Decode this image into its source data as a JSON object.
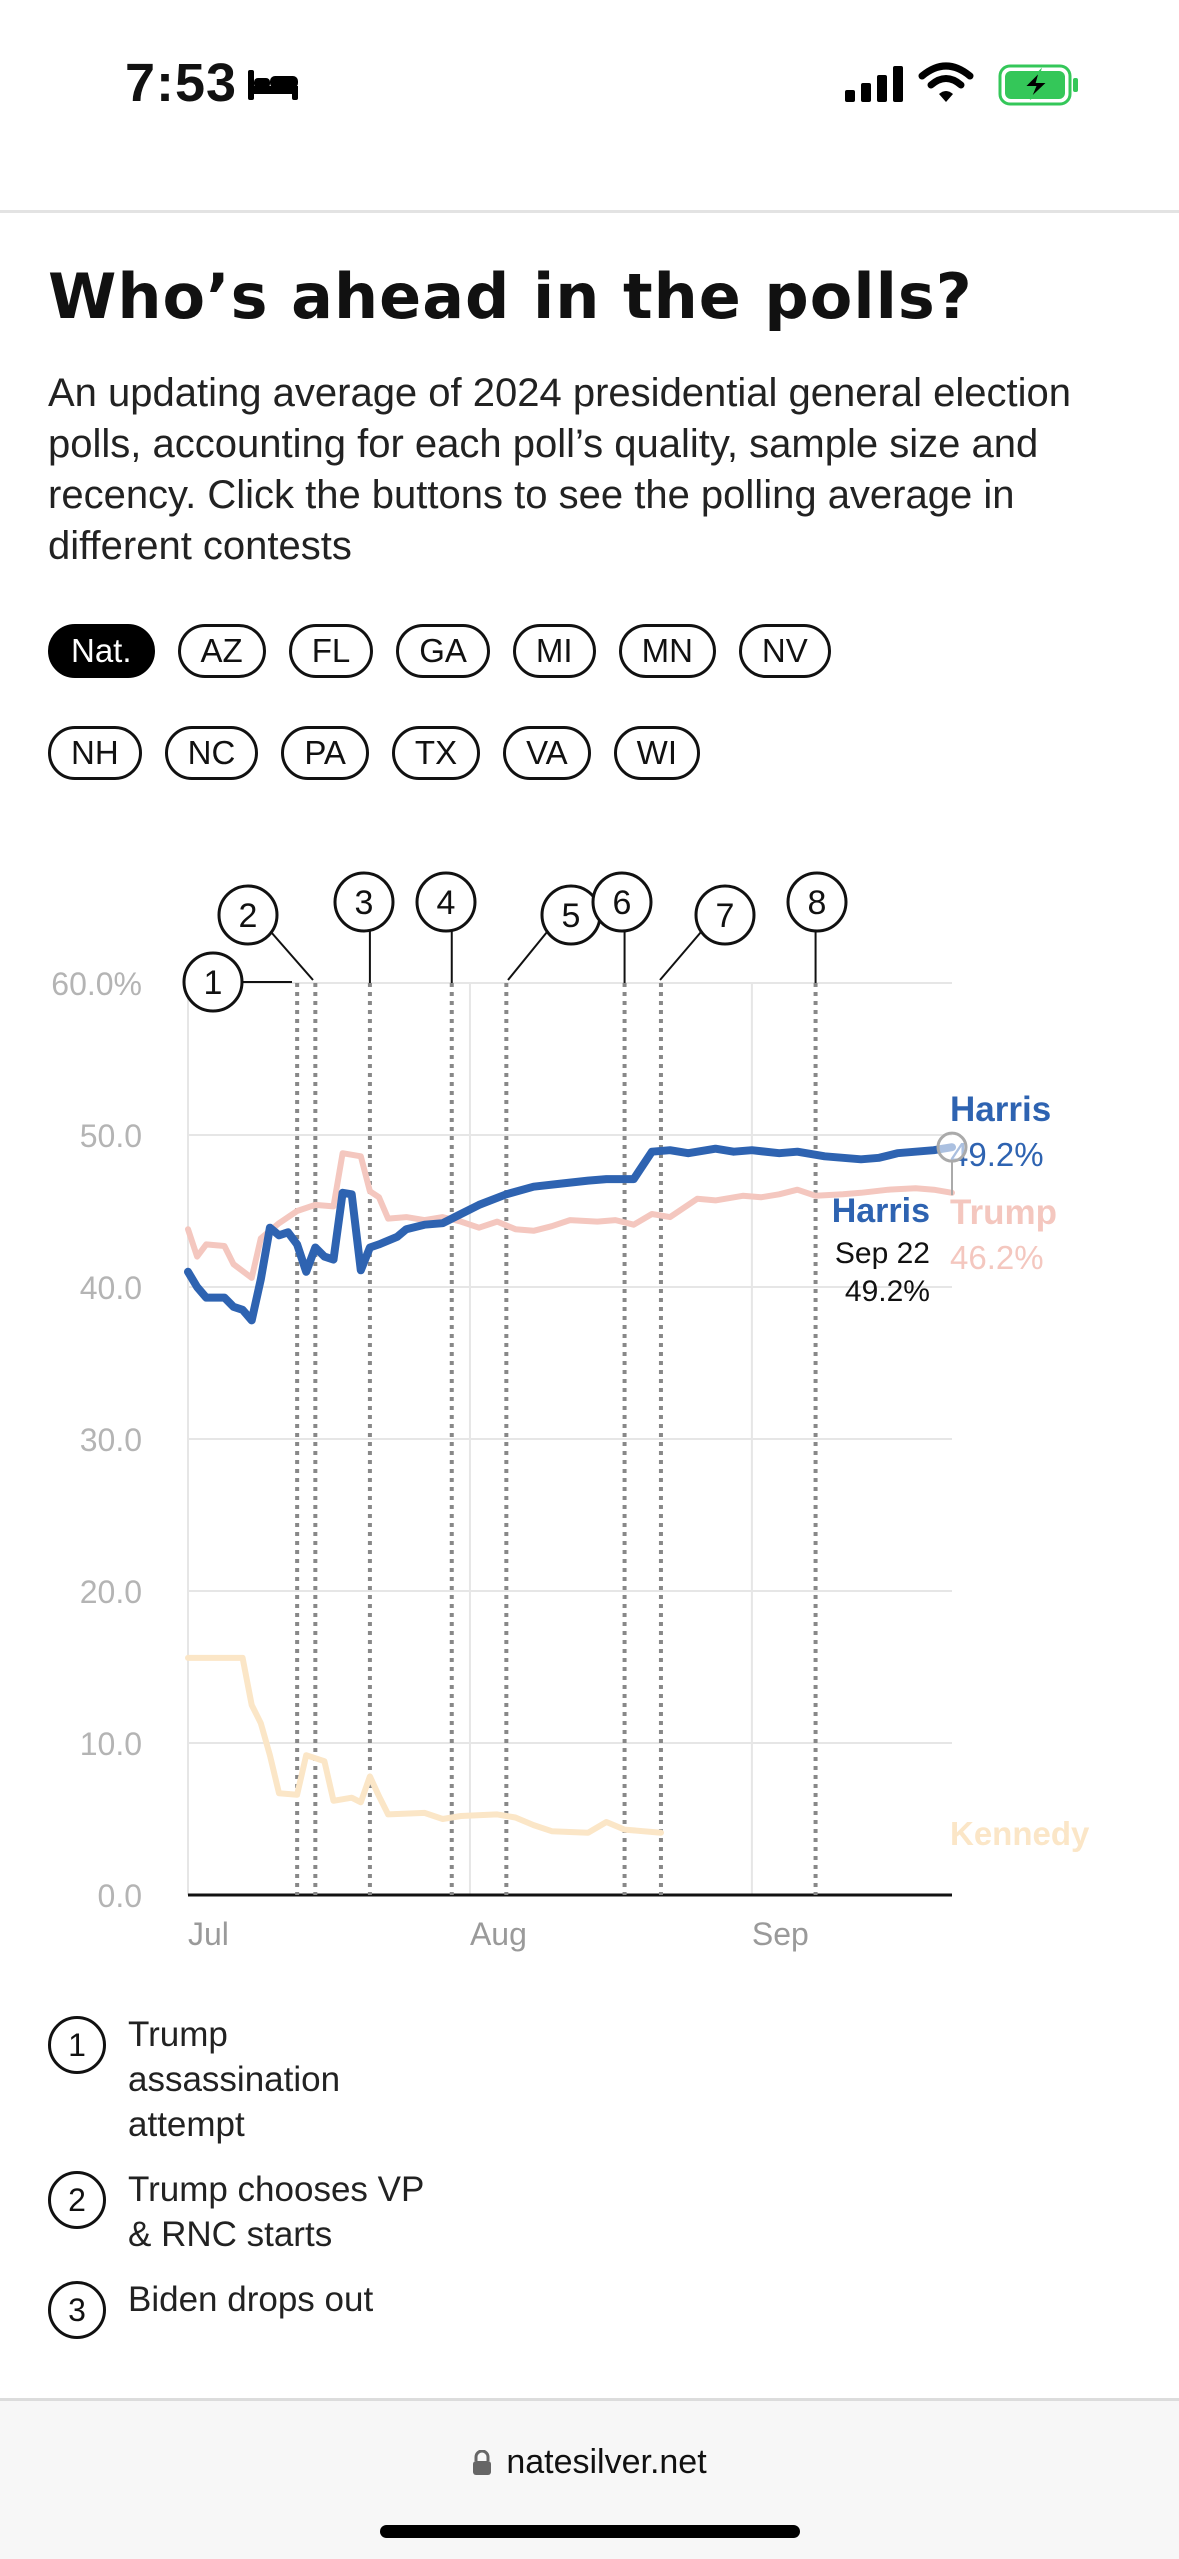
{
  "status_bar": {
    "time": "7:53",
    "icons": [
      "bed-icon",
      "signal-icon",
      "wifi-icon",
      "battery-charging-icon"
    ],
    "battery_color": "#34c759"
  },
  "article": {
    "title": "Who’s ahead in the polls?",
    "subtitle": "An updating average of 2024 presidential general election polls, accounting for each poll’s quality, sample size and recency. Click the buttons to see the polling average in different contests"
  },
  "filters": {
    "selected": "Nat.",
    "row1": [
      "Nat.",
      "AZ",
      "FL",
      "GA",
      "MI",
      "MN",
      "NV"
    ],
    "row2": [
      "NH",
      "NC",
      "PA",
      "TX",
      "VA",
      "WI"
    ]
  },
  "chart_data": {
    "type": "line",
    "x_ticks": [
      "Jul",
      "Aug",
      "Sep"
    ],
    "y_ticks": [
      "60.0%",
      "50.0",
      "40.0",
      "30.0",
      "20.0",
      "10.0",
      "0.0"
    ],
    "ylim": [
      0,
      60
    ],
    "grid": true,
    "x_domain_days": [
      0,
      84
    ],
    "series": [
      {
        "name": "Harris",
        "color": "#2e63b1",
        "end_label": "49.2%",
        "points": [
          [
            0,
            41
          ],
          [
            1,
            40
          ],
          [
            2,
            39.3
          ],
          [
            4,
            39.3
          ],
          [
            5,
            38.7
          ],
          [
            6,
            38.5
          ],
          [
            7,
            37.8
          ],
          [
            8,
            40.5
          ],
          [
            9,
            43.9
          ],
          [
            10,
            43.4
          ],
          [
            11,
            43.6
          ],
          [
            12,
            42.8
          ],
          [
            13,
            41
          ],
          [
            14,
            42.6
          ],
          [
            15,
            42
          ],
          [
            16,
            41.8
          ],
          [
            17,
            46.2
          ],
          [
            18,
            46.1
          ],
          [
            19,
            41.1
          ],
          [
            20,
            42.6
          ],
          [
            21,
            42.8
          ],
          [
            23,
            43.3
          ],
          [
            24,
            43.8
          ],
          [
            26,
            44.1
          ],
          [
            28,
            44.2
          ],
          [
            30,
            44.8
          ],
          [
            32,
            45.4
          ],
          [
            35,
            46.1
          ],
          [
            38,
            46.6
          ],
          [
            41,
            46.8
          ],
          [
            44,
            47
          ],
          [
            46,
            47.1
          ],
          [
            49,
            47.1
          ],
          [
            51,
            48.9
          ],
          [
            53,
            49
          ],
          [
            55,
            48.8
          ],
          [
            58,
            49.1
          ],
          [
            60,
            48.9
          ],
          [
            62,
            49
          ],
          [
            65,
            48.8
          ],
          [
            67,
            48.9
          ],
          [
            70,
            48.6
          ],
          [
            72,
            48.5
          ],
          [
            74,
            48.4
          ],
          [
            76,
            48.5
          ],
          [
            78,
            48.8
          ],
          [
            80,
            48.9
          ],
          [
            82,
            49
          ],
          [
            84,
            49.2
          ]
        ]
      },
      {
        "name": "Trump",
        "color": "#f4c7bf",
        "end_label": "46.2%",
        "points": [
          [
            0,
            43.8
          ],
          [
            1,
            42
          ],
          [
            2,
            42.8
          ],
          [
            4,
            42.7
          ],
          [
            5,
            41.5
          ],
          [
            7,
            40.6
          ],
          [
            8,
            43.2
          ],
          [
            10,
            44.2
          ],
          [
            12,
            45
          ],
          [
            14,
            45.4
          ],
          [
            16,
            45.3
          ],
          [
            17,
            48.8
          ],
          [
            19,
            48.6
          ],
          [
            20,
            46.3
          ],
          [
            21,
            45.9
          ],
          [
            22,
            44.5
          ],
          [
            24,
            44.6
          ],
          [
            26,
            44.4
          ],
          [
            28,
            44.6
          ],
          [
            30,
            44.3
          ],
          [
            32,
            43.9
          ],
          [
            34,
            44.3
          ],
          [
            36,
            43.8
          ],
          [
            38,
            43.7
          ],
          [
            40,
            44
          ],
          [
            42,
            44.4
          ],
          [
            45,
            44.3
          ],
          [
            47,
            44.4
          ],
          [
            49,
            44.1
          ],
          [
            51,
            44.8
          ],
          [
            53,
            44.6
          ],
          [
            56,
            45.8
          ],
          [
            58,
            45.7
          ],
          [
            61,
            46
          ],
          [
            63,
            45.9
          ],
          [
            65,
            46.1
          ],
          [
            67,
            46.4
          ],
          [
            69,
            46
          ],
          [
            72,
            46.1
          ],
          [
            74,
            46.2
          ],
          [
            77,
            46.4
          ],
          [
            80,
            46.5
          ],
          [
            82,
            46.4
          ],
          [
            84,
            46.2
          ]
        ]
      },
      {
        "name": "Kennedy",
        "color": "#fbe6c7",
        "points": [
          [
            0,
            15.6
          ],
          [
            6,
            15.6
          ],
          [
            7,
            12.5
          ],
          [
            8,
            11.3
          ],
          [
            9,
            9.2
          ],
          [
            10,
            6.7
          ],
          [
            12,
            6.6
          ],
          [
            13,
            9.2
          ],
          [
            15,
            8.8
          ],
          [
            16,
            6.2
          ],
          [
            18,
            6.4
          ],
          [
            19,
            6.1
          ],
          [
            20,
            7.8
          ],
          [
            21,
            6.5
          ],
          [
            22,
            5.3
          ],
          [
            26,
            5.4
          ],
          [
            28,
            5
          ],
          [
            30,
            5.2
          ],
          [
            34,
            5.3
          ],
          [
            36,
            5.1
          ],
          [
            38,
            4.6
          ],
          [
            40,
            4.2
          ],
          [
            44,
            4.1
          ],
          [
            46,
            4.8
          ],
          [
            48,
            4.3
          ],
          [
            52,
            4.1
          ]
        ]
      }
    ],
    "tooltip": {
      "name": "Harris",
      "date": "Sep 22",
      "value": "49.2%",
      "day": 84
    },
    "events": [
      {
        "num": "1",
        "day": 12
      },
      {
        "num": "2",
        "day": 14
      },
      {
        "num": "3",
        "day": 20
      },
      {
        "num": "4",
        "day": 29
      },
      {
        "num": "5",
        "day": 35
      },
      {
        "num": "6",
        "day": 48
      },
      {
        "num": "7",
        "day": 52
      },
      {
        "num": "8",
        "day": 69
      }
    ]
  },
  "event_legend": [
    {
      "num": "1",
      "text": "Trump assassination attempt"
    },
    {
      "num": "2",
      "text": "Trump chooses VP & RNC starts"
    },
    {
      "num": "3",
      "text": "Biden drops out"
    }
  ],
  "browser": {
    "url": "natesilver.net"
  }
}
